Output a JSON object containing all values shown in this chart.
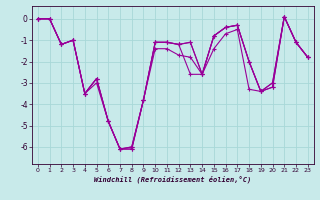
{
  "xlabel": "Windchill (Refroidissement éolien,°C)",
  "bg_color": "#c8eaea",
  "grid_color": "#a8d8d8",
  "line_color": "#990099",
  "xlim": [
    -0.5,
    23.5
  ],
  "ylim": [
    -6.8,
    0.6
  ],
  "yticks": [
    0,
    -1,
    -2,
    -3,
    -4,
    -5,
    -6
  ],
  "xticks": [
    0,
    1,
    2,
    3,
    4,
    5,
    6,
    7,
    8,
    9,
    10,
    11,
    12,
    13,
    14,
    15,
    16,
    17,
    18,
    19,
    20,
    21,
    22,
    23
  ],
  "series": [
    [
      0.0,
      0.0,
      -1.2,
      -1.0,
      -3.5,
      -3.0,
      -4.8,
      -6.1,
      -6.1,
      -3.8,
      -1.1,
      -1.1,
      -1.2,
      -1.1,
      -2.6,
      -0.8,
      -0.4,
      -0.3,
      -2.0,
      -3.4,
      -3.2,
      0.1,
      -1.1,
      -1.8
    ],
    [
      0.0,
      0.0,
      -1.2,
      -1.0,
      -3.5,
      -2.8,
      -4.8,
      -6.1,
      -6.1,
      -3.8,
      -1.1,
      -1.1,
      -1.2,
      -1.1,
      -2.6,
      -0.8,
      -0.4,
      -0.3,
      -2.0,
      -3.4,
      -3.2,
      0.1,
      -1.1,
      -1.8
    ],
    [
      0.0,
      0.0,
      -1.2,
      -1.0,
      -3.5,
      -2.8,
      -4.8,
      -6.1,
      -6.0,
      -3.8,
      -1.1,
      -1.1,
      -1.2,
      -2.6,
      -2.6,
      -0.8,
      -0.4,
      -0.3,
      -2.0,
      -3.4,
      -3.0,
      0.1,
      -1.1,
      -1.8
    ],
    [
      0.0,
      0.0,
      -1.2,
      -1.0,
      -3.5,
      -2.8,
      -4.8,
      -6.1,
      -6.0,
      -3.8,
      -1.4,
      -1.4,
      -1.7,
      -1.8,
      -2.6,
      -1.4,
      -0.7,
      -0.5,
      -3.3,
      -3.4,
      -3.0,
      0.1,
      -1.1,
      -1.8
    ]
  ]
}
